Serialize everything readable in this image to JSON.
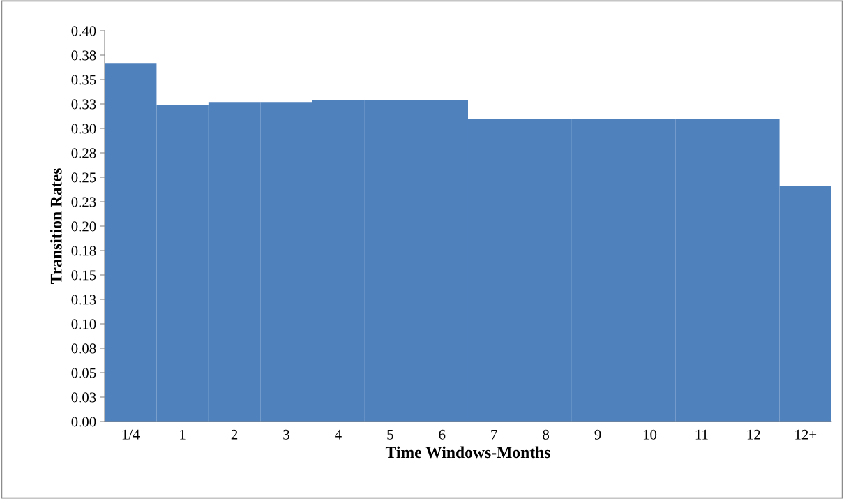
{
  "chart_data": {
    "type": "bar",
    "xlabel": "Time Windows-Months",
    "ylabel": "Transition Rates",
    "categories": [
      "1/4",
      "1",
      "2",
      "3",
      "4",
      "5",
      "6",
      "7",
      "8",
      "9",
      "10",
      "11",
      "12",
      "12+"
    ],
    "values": [
      0.367,
      0.324,
      0.327,
      0.327,
      0.329,
      0.329,
      0.329,
      0.31,
      0.31,
      0.31,
      0.31,
      0.31,
      0.31,
      0.241
    ],
    "color": "#4f81bd",
    "ylim": [
      0,
      0.4
    ],
    "yticks": [
      {
        "value": 0,
        "label": "0.00"
      },
      {
        "value": 0.025,
        "label": "0.03"
      },
      {
        "value": 0.05,
        "label": "0.05"
      },
      {
        "value": 0.075,
        "label": "0.08"
      },
      {
        "value": 0.1,
        "label": "0.10"
      },
      {
        "value": 0.125,
        "label": "0.13"
      },
      {
        "value": 0.15,
        "label": "0.15"
      },
      {
        "value": 0.175,
        "label": "0.18"
      },
      {
        "value": 0.2,
        "label": "0.20"
      },
      {
        "value": 0.225,
        "label": "0.23"
      },
      {
        "value": 0.25,
        "label": "0.25"
      },
      {
        "value": 0.275,
        "label": "0.28"
      },
      {
        "value": 0.3,
        "label": "0.30"
      },
      {
        "value": 0.325,
        "label": "0.33"
      },
      {
        "value": 0.35,
        "label": "0.35"
      },
      {
        "value": 0.375,
        "label": "0.38"
      },
      {
        "value": 0.4,
        "label": "0.40"
      }
    ],
    "grid": false,
    "legend": false
  }
}
